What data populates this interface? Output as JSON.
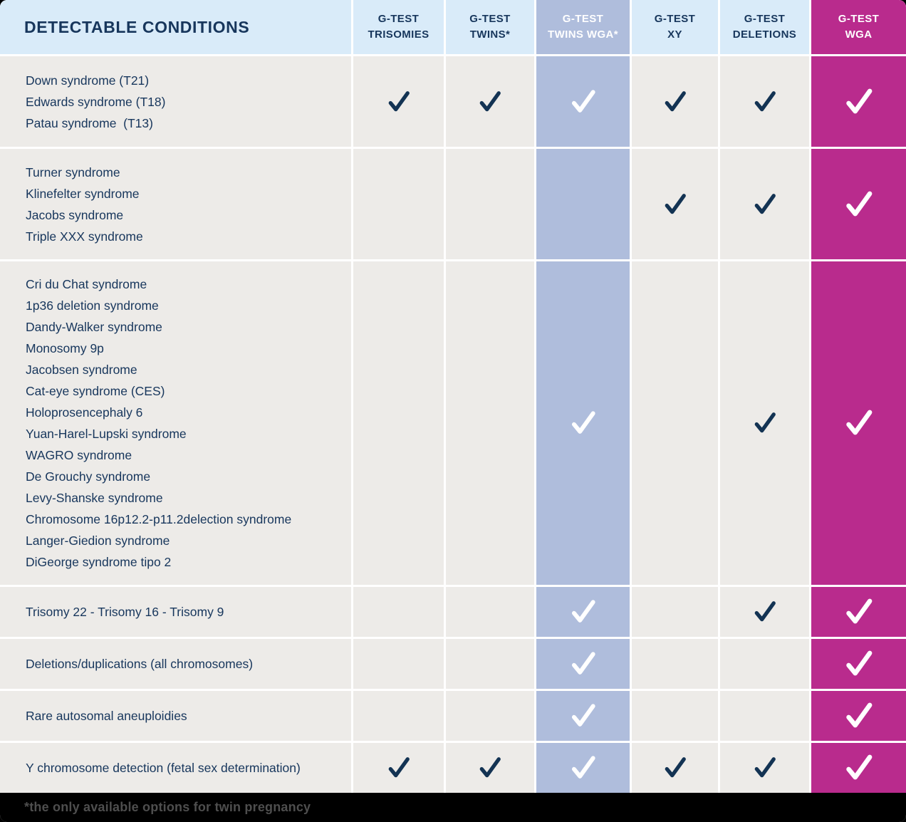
{
  "chart_data": {
    "type": "table",
    "title": "DETECTABLE CONDITIONS",
    "columns": [
      {
        "id": "trisomies",
        "label": [
          "G-TEST",
          "TRISOMIES"
        ]
      },
      {
        "id": "twins",
        "label": [
          "G-TEST",
          "TWINS*"
        ]
      },
      {
        "id": "twins_wga",
        "label": [
          "G-TEST",
          "TWINS WGA*"
        ]
      },
      {
        "id": "xy",
        "label": [
          "G-TEST",
          "XY"
        ]
      },
      {
        "id": "deletions",
        "label": [
          "G-TEST",
          "DELETIONS"
        ]
      },
      {
        "id": "wga",
        "label": [
          "G-TEST",
          "WGA"
        ]
      }
    ],
    "rows": [
      {
        "conditions": [
          "Down syndrome (T21)",
          "Edwards syndrome (T18)",
          "Patau syndrome  (T13)"
        ],
        "checks": {
          "trisomies": true,
          "twins": true,
          "twins_wga": true,
          "xy": true,
          "deletions": true,
          "wga": true
        }
      },
      {
        "conditions": [
          "Turner syndrome",
          "Klinefelter syndrome",
          "Jacobs syndrome",
          "Triple XXX syndrome"
        ],
        "checks": {
          "trisomies": false,
          "twins": false,
          "twins_wga": false,
          "xy": true,
          "deletions": true,
          "wga": true
        }
      },
      {
        "conditions": [
          "Cri du Chat syndrome",
          "1p36 deletion syndrome",
          "Dandy-Walker syndrome",
          "Monosomy 9p",
          "Jacobsen syndrome",
          "Cat-eye syndrome (CES)",
          "Holoprosencephaly 6",
          "Yuan-Harel-Lupski syndrome",
          "WAGRO syndrome",
          "De Grouchy syndrome",
          "Levy-Shanske syndrome",
          "Chromosome 16p12.2-p11.2delection syndrome",
          "Langer-Giedion syndrome",
          "DiGeorge syndrome tipo 2"
        ],
        "checks": {
          "trisomies": false,
          "twins": false,
          "twins_wga": true,
          "xy": false,
          "deletions": true,
          "wga": true
        }
      },
      {
        "conditions": [
          "Trisomy 22 - Trisomy 16 - Trisomy 9"
        ],
        "checks": {
          "trisomies": false,
          "twins": false,
          "twins_wga": true,
          "xy": false,
          "deletions": true,
          "wga": true
        }
      },
      {
        "conditions": [
          "Deletions/duplications (all chromosomes)"
        ],
        "checks": {
          "trisomies": false,
          "twins": false,
          "twins_wga": true,
          "xy": false,
          "deletions": false,
          "wga": true
        }
      },
      {
        "conditions": [
          "Rare autosomal aneuploidies"
        ],
        "checks": {
          "trisomies": false,
          "twins": false,
          "twins_wga": true,
          "xy": false,
          "deletions": false,
          "wga": true
        }
      },
      {
        "conditions": [
          "Y chromosome detection (fetal sex determination)"
        ],
        "checks": {
          "trisomies": true,
          "twins": true,
          "twins_wga": true,
          "xy": true,
          "deletions": true,
          "wga": true
        }
      }
    ],
    "footnote": "*the only available options for twin pregnancy"
  },
  "colors": {
    "header_bg": "#d9ebf9",
    "body_bg": "#edebe8",
    "navy_text": "#17365c",
    "check_navy": "#133353",
    "twins_wga_column": "#afbddc",
    "wga_column": "#b92b8d",
    "check_white": "#ffffff",
    "footer_bg": "#000000",
    "footer_text": "#4e4e4e"
  }
}
